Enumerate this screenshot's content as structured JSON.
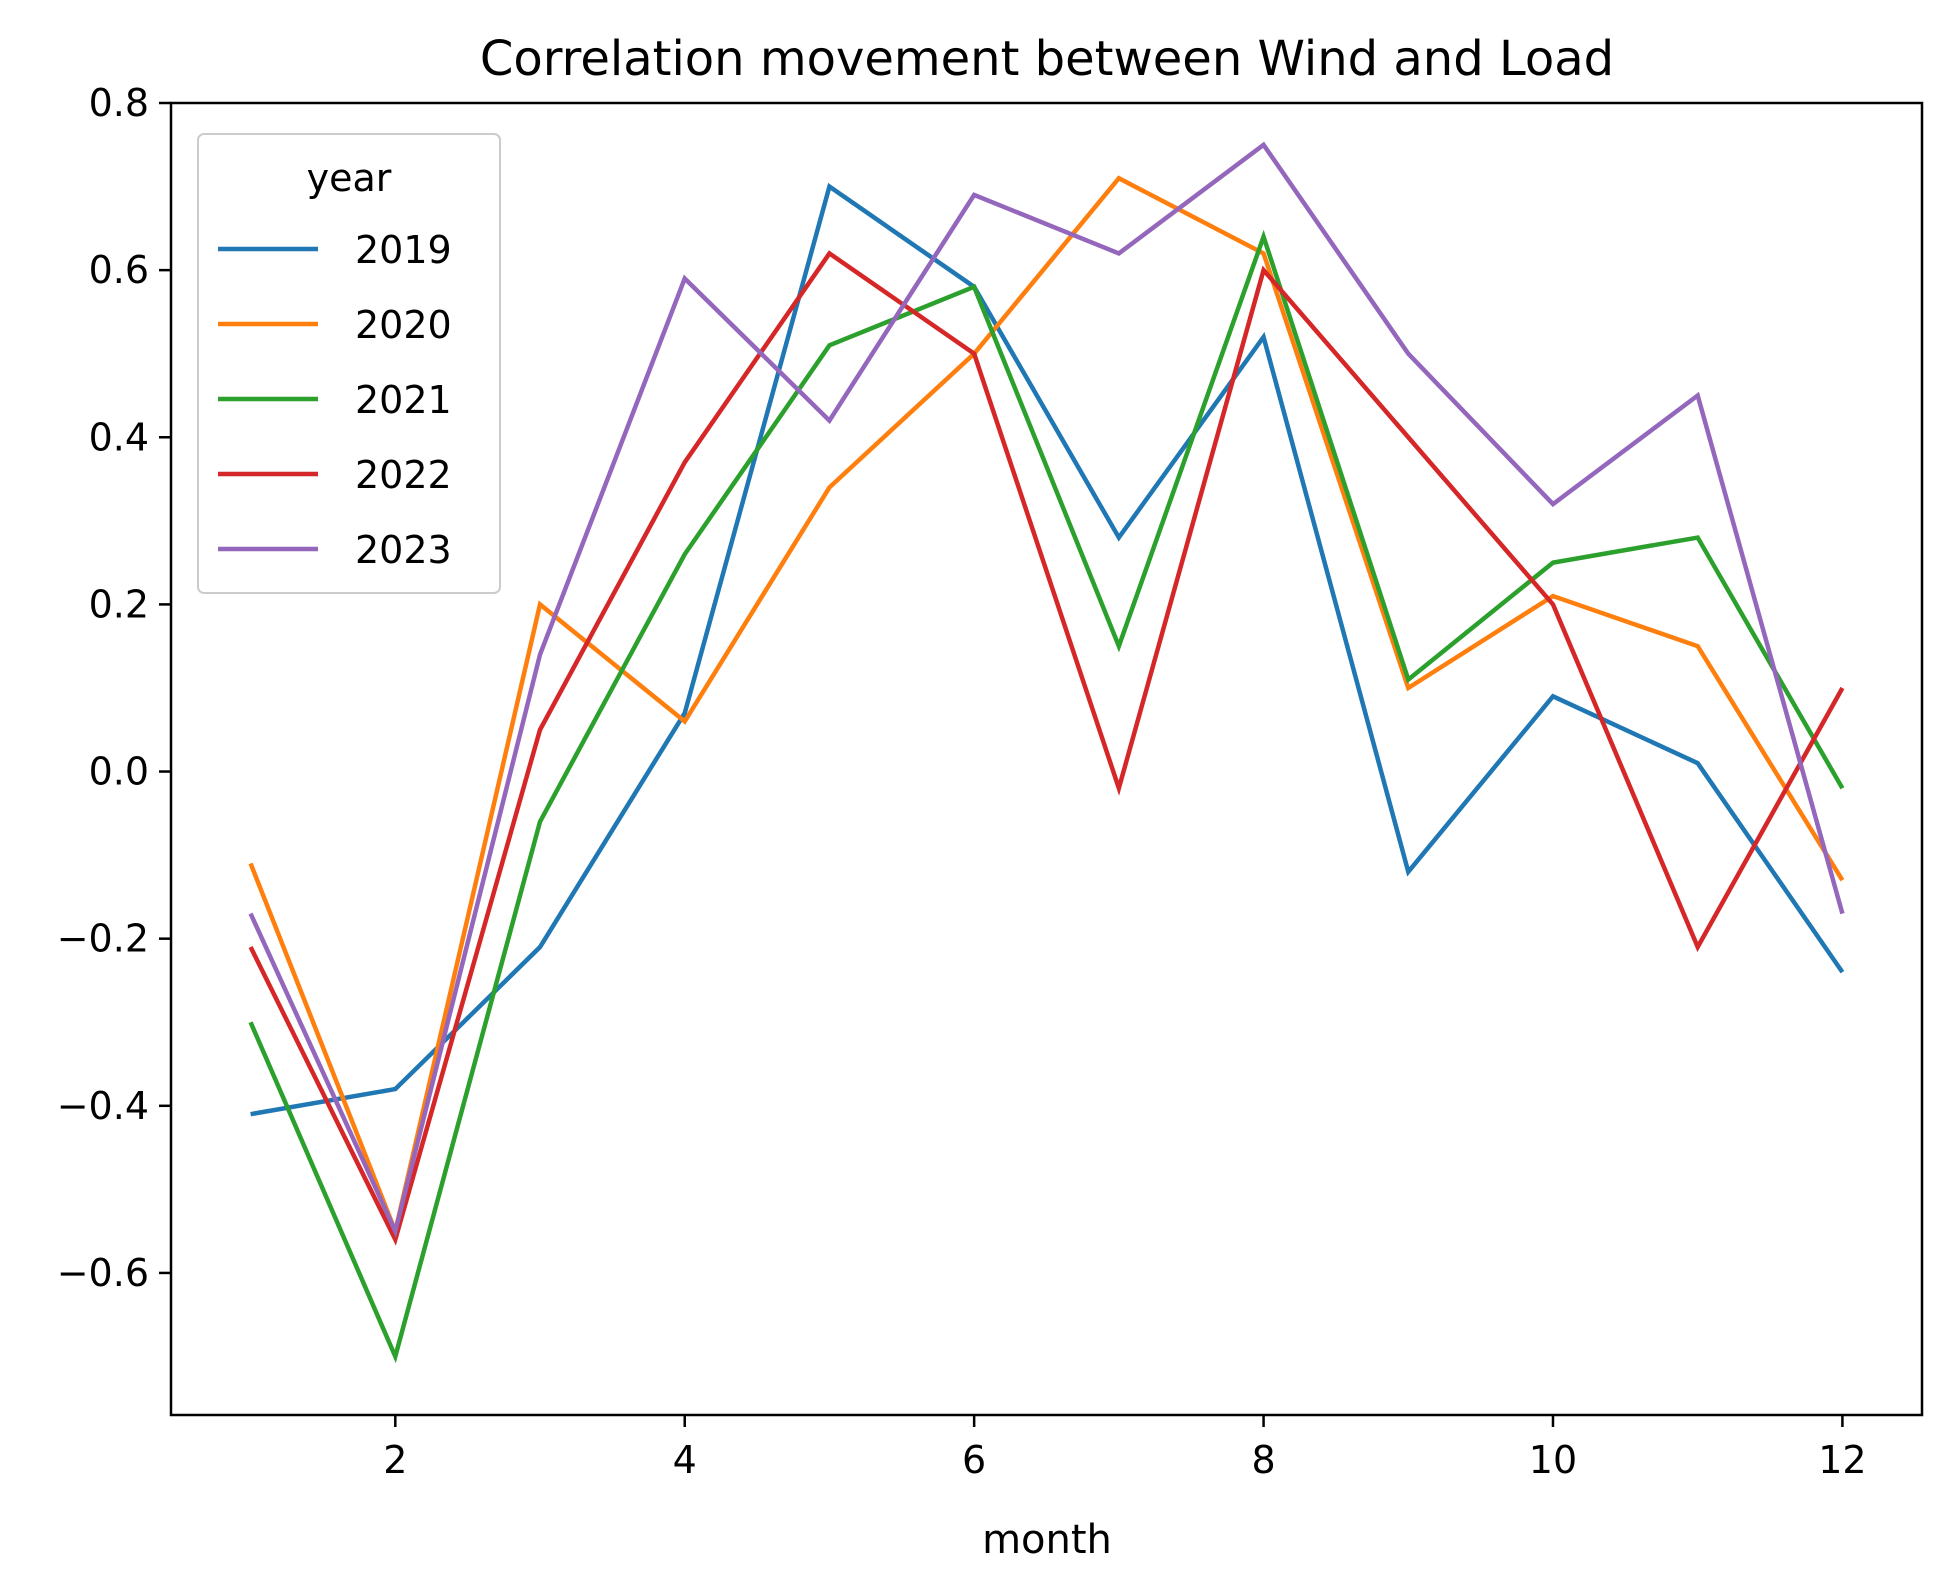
{
  "chart_data": {
    "type": "line",
    "title": "Correlation movement between Wind and Load",
    "xlabel": "month",
    "ylabel": "",
    "x": [
      1,
      2,
      3,
      4,
      5,
      6,
      7,
      8,
      9,
      10,
      11,
      12
    ],
    "xlim": [
      0.45,
      12.55
    ],
    "ylim": [
      -0.77,
      0.8
    ],
    "xticks": [
      2,
      4,
      6,
      8,
      10,
      12
    ],
    "yticks": [
      -0.6,
      -0.4,
      -0.2,
      0.0,
      0.2,
      0.4,
      0.6,
      0.8
    ],
    "xtick_labels": [
      "2",
      "4",
      "6",
      "8",
      "10",
      "12"
    ],
    "ytick_labels": [
      "−0.6",
      "−0.4",
      "−0.2",
      "0.0",
      "0.2",
      "0.4",
      "0.6",
      "0.8"
    ],
    "grid": false,
    "legend": {
      "title": "year",
      "position": "upper-left"
    },
    "series": [
      {
        "name": "2019",
        "color": "#1f77b4",
        "values": [
          -0.41,
          -0.38,
          -0.21,
          0.07,
          0.7,
          0.58,
          0.28,
          0.52,
          -0.12,
          0.09,
          0.01,
          -0.24
        ]
      },
      {
        "name": "2020",
        "color": "#ff7f0e",
        "values": [
          -0.11,
          -0.55,
          0.2,
          0.06,
          0.34,
          0.5,
          0.71,
          0.62,
          0.1,
          0.21,
          0.15,
          -0.13
        ]
      },
      {
        "name": "2021",
        "color": "#2ca02c",
        "values": [
          -0.3,
          -0.7,
          -0.06,
          0.26,
          0.51,
          0.58,
          0.15,
          0.64,
          0.11,
          0.25,
          0.28,
          -0.02
        ]
      },
      {
        "name": "2022",
        "color": "#d62728",
        "values": [
          -0.21,
          -0.56,
          0.05,
          0.37,
          0.62,
          0.5,
          -0.02,
          0.6,
          0.4,
          0.2,
          -0.21,
          0.1
        ]
      },
      {
        "name": "2023",
        "color": "#9467bd",
        "values": [
          -0.17,
          -0.55,
          0.14,
          0.59,
          0.42,
          0.69,
          0.62,
          0.75,
          0.5,
          0.32,
          0.45,
          -0.17
        ]
      }
    ]
  }
}
